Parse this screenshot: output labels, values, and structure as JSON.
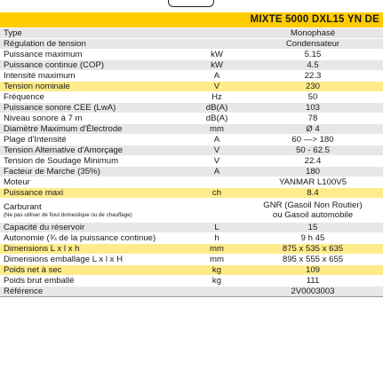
{
  "title": "MIXTE 5000 DXL15 YN DE",
  "rows": [
    {
      "label": "Type",
      "unit": "",
      "value": "Monophasé",
      "bg": "alt"
    },
    {
      "label": "Régulation de tension",
      "unit": "",
      "value": "Condensateur",
      "bg": "alt"
    },
    {
      "label": "Puissance maximum",
      "unit": "kW",
      "value": "5.15",
      "bg": "white"
    },
    {
      "label": "Puissance continue (COP)",
      "unit": "kW",
      "value": "4.5",
      "bg": "alt"
    },
    {
      "label": "Intensité maximum",
      "unit": "A",
      "value": "22.3",
      "bg": "white"
    },
    {
      "label": "Tension nominale",
      "unit": "V",
      "value": "230",
      "bg": "hl"
    },
    {
      "label": "Fréquence",
      "unit": "Hz",
      "value": "50",
      "bg": "white"
    },
    {
      "label": "Puissance sonore CEE (LwA)",
      "unit": "dB(A)",
      "value": "103",
      "bg": "alt"
    },
    {
      "label": "Niveau sonore à 7 m",
      "unit": "dB(A)",
      "value": "78",
      "bg": "white"
    },
    {
      "label": "Diamètre Maximum d'Électrode",
      "unit": "mm",
      "value": "Ø 4",
      "bg": "alt"
    },
    {
      "label": "Plage d'Intensité",
      "unit": "A",
      "value": "60 —> 180",
      "bg": "white"
    },
    {
      "label": "Tension Alternative d'Amorçage",
      "unit": "V",
      "value": "50 - 62.5",
      "bg": "alt"
    },
    {
      "label": "Tension de Soudage Minimum",
      "unit": "V",
      "value": "22.4",
      "bg": "white"
    },
    {
      "label": "Facteur de Marche (35%)",
      "unit": "A",
      "value": "180",
      "bg": "alt"
    },
    {
      "label": "Moteur",
      "unit": "",
      "value": "YANMAR L100V5",
      "bg": "white"
    },
    {
      "label": "Puissance maxi",
      "unit": "ch",
      "value": "8.4",
      "bg": "hl"
    },
    {
      "label": "Carburant",
      "note": "(Ne pas utiliser de fioul domestique ou de chauffage)",
      "unit": "",
      "value": "GNR (Gasoil Non Routier)",
      "value2": "ou Gasoil automobile",
      "bg": "white"
    },
    {
      "label": "Capacité du réservoir",
      "unit": "L",
      "value": "15",
      "bg": "alt"
    },
    {
      "label": "Autonomie (¾ de la puissance continue)",
      "unit": "h",
      "value": "9 h 45",
      "bg": "white"
    },
    {
      "label": "Dimensions L x l x h",
      "unit": "mm",
      "value": "875 x 535 x 635",
      "bg": "hl"
    },
    {
      "label": "Dimensions emballage L x l x H",
      "unit": "mm",
      "value": "895 x 555 x 655",
      "bg": "white"
    },
    {
      "label": "Poids net à sec",
      "unit": "kg",
      "value": "109",
      "bg": "hl"
    },
    {
      "label": "Poids brut emballé",
      "unit": "kg",
      "value": "111",
      "bg": "white"
    },
    {
      "label": "Référence",
      "unit": "",
      "value": "2V0003003",
      "bg": "alt"
    }
  ]
}
